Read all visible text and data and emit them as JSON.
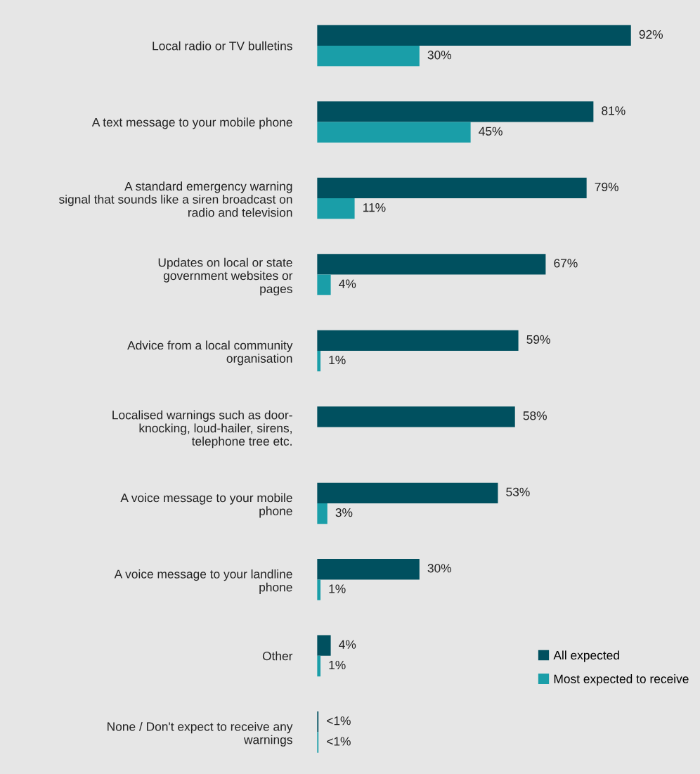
{
  "chart_data": {
    "type": "bar",
    "orientation": "horizontal",
    "legend": "lower right",
    "categories": [
      "Local radio or TV bulletins",
      "A text message to your mobile phone",
      "A standard emergency warning\nsignal that sounds like a siren broadcast on\nradio and television",
      "Updates on local or state\ngovernment websites or\npages",
      "Advice from a local community\norganisation",
      "Localised warnings such as door-\nknocking, loud-hailer, sirens,\ntelephone tree etc.",
      "A voice message to your mobile\nphone",
      "A voice message to your landline\nphone",
      "Other",
      "None / Don't expect to receive any\nwarnings"
    ],
    "series": [
      {
        "name": "All expected",
        "color": "#00505f",
        "values": [
          92,
          81,
          79,
          67,
          59,
          58,
          53,
          30,
          4,
          0.4
        ],
        "value_labels": [
          "92%",
          "81%",
          "79%",
          "67%",
          "59%",
          "58%",
          "53%",
          "30%",
          "4%",
          "<1%"
        ]
      },
      {
        "name": "Most expected to receive",
        "color": "#1a9ea8",
        "values": [
          30,
          45,
          11,
          4,
          1,
          null,
          3,
          1,
          1,
          0.4
        ],
        "value_labels": [
          "30%",
          "45%",
          "11%",
          "4%",
          "1%",
          null,
          "3%",
          "1%",
          "1%",
          "<1%"
        ]
      }
    ]
  }
}
